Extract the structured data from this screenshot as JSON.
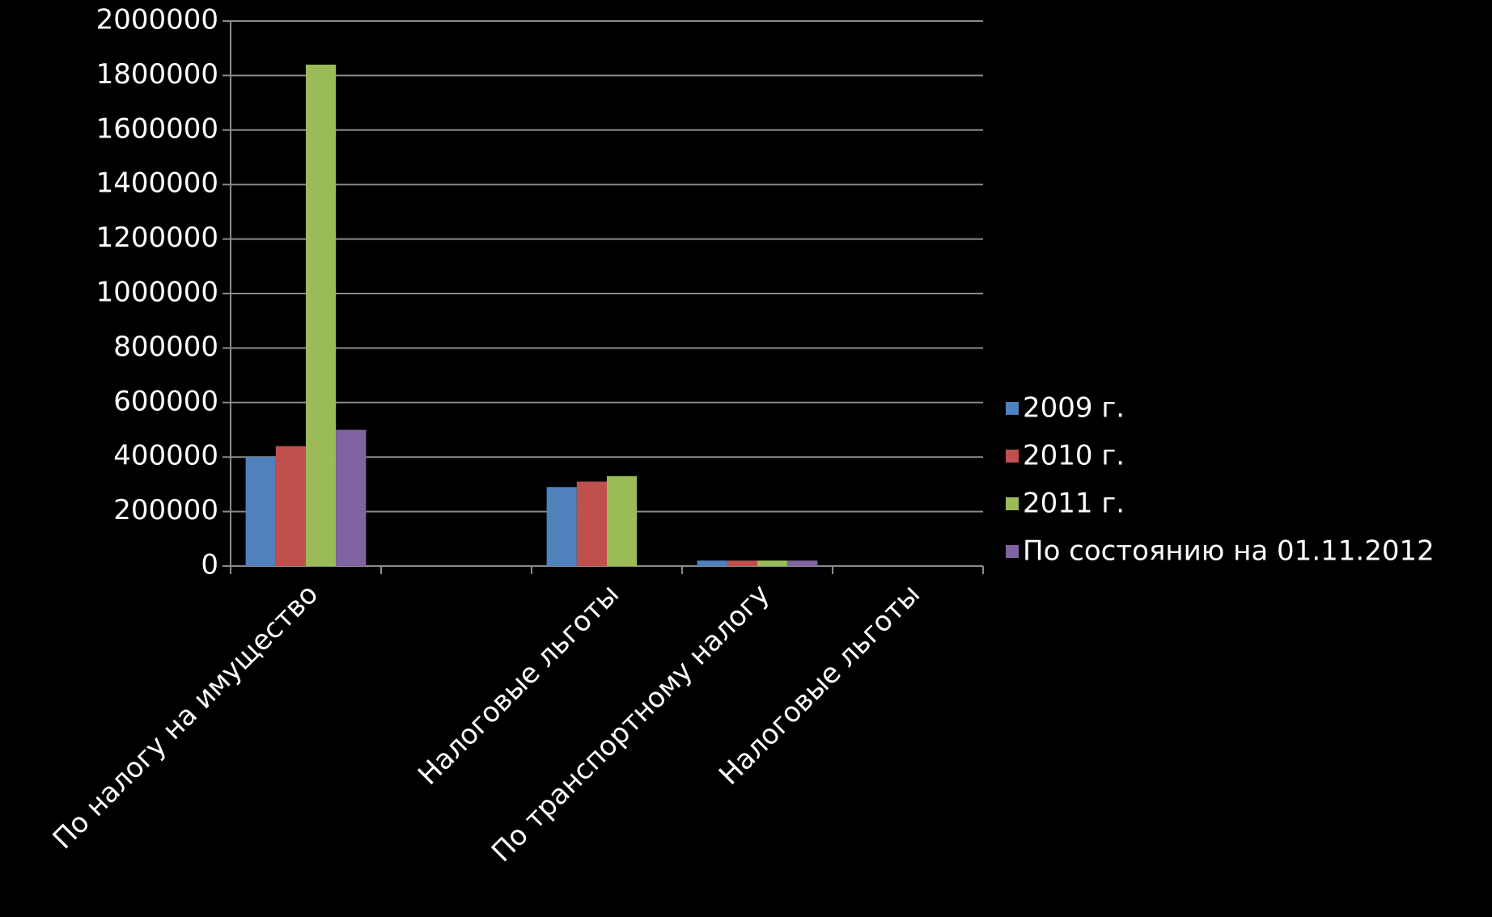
{
  "chart_data": {
    "type": "bar",
    "categories": [
      "По налогу на имущество",
      null,
      "Налоговые льготы",
      "По транспортному  налогу",
      "Налоговые льготы"
    ],
    "series": [
      {
        "name": "2009 г.",
        "color": "#4f81bd",
        "values": [
          400000,
          null,
          290000,
          20000,
          null
        ]
      },
      {
        "name": "2010 г.",
        "color": "#c0504d",
        "values": [
          440000,
          null,
          310000,
          20000,
          null
        ]
      },
      {
        "name": "2011 г.",
        "color": "#9bbb59",
        "values": [
          1840000,
          null,
          330000,
          20000,
          null
        ]
      },
      {
        "name": "По состоянию на 01.11.2012",
        "color": "#8064a2",
        "values": [
          500000,
          null,
          null,
          20000,
          null
        ]
      }
    ],
    "ylim": [
      0,
      2000000
    ],
    "yticks": [
      0,
      200000,
      400000,
      600000,
      800000,
      1000000,
      1200000,
      1400000,
      1600000,
      1800000,
      2000000
    ],
    "grid": true,
    "legend": "right"
  }
}
